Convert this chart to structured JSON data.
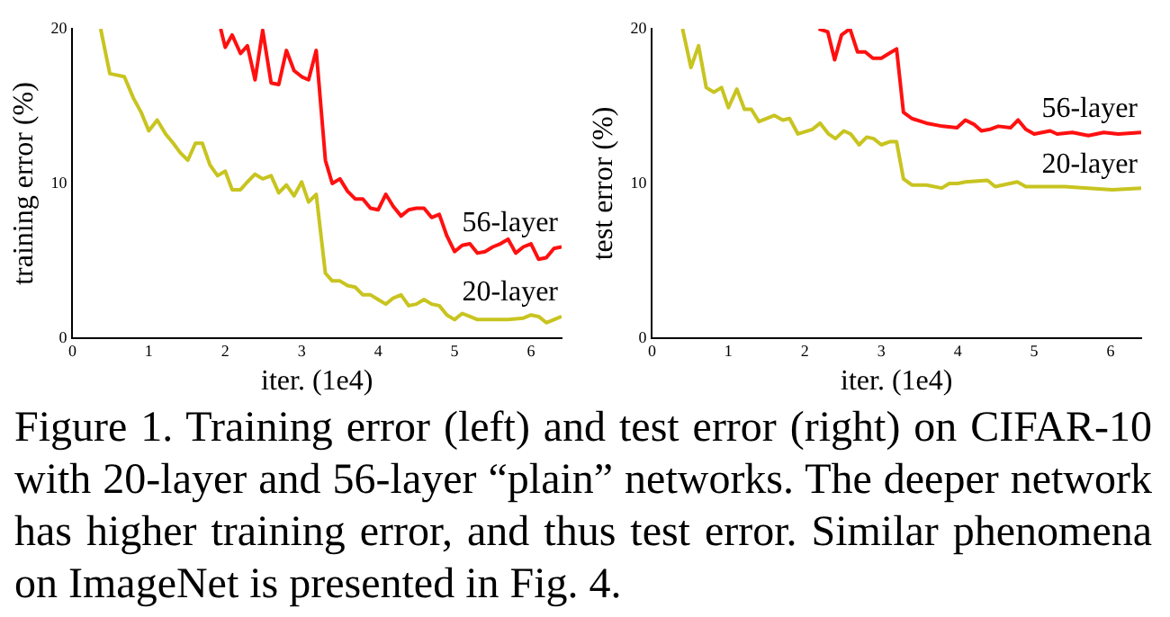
{
  "chart_data": [
    {
      "type": "line",
      "xlabel": "iter. (1e4)",
      "ylabel": "training error (%)",
      "xlim": [
        0,
        6.4
      ],
      "xticks": [
        0,
        1,
        2,
        3,
        4,
        5,
        6
      ],
      "ylim": [
        0,
        20
      ],
      "yticks": [
        0,
        10,
        20
      ],
      "grid": false,
      "legend": false,
      "marker": "none",
      "line_style": "solid",
      "annotations": [
        "Figure 1. Training error (left) and test error (right) on CIFAR-10 with 20-layer and 56-layer “plain” networks. The deeper network has higher training error, and thus test error. Similar phenomena on ImageNet is presented in Fig. 4."
      ],
      "series": [
        {
          "name": "56-layer",
          "color": "#ff1010",
          "x": [
            1.94,
            2.0,
            2.09,
            2.2,
            2.29,
            2.39,
            2.49,
            2.6,
            2.7,
            2.8,
            2.9,
            3.0,
            3.09,
            3.19,
            3.31,
            3.4,
            3.5,
            3.6,
            3.7,
            3.8,
            3.9,
            4.0,
            4.1,
            4.2,
            4.3,
            4.4,
            4.5,
            4.6,
            4.7,
            4.8,
            4.9,
            5.0,
            5.1,
            5.2,
            5.3,
            5.4,
            5.5,
            5.6,
            5.7,
            5.8,
            5.9,
            6.0,
            6.1,
            6.2,
            6.3,
            6.4
          ],
          "values": [
            20,
            18.8,
            19.6,
            18.4,
            18.9,
            16.7,
            19.9,
            16.5,
            16.4,
            18.6,
            17.3,
            16.9,
            16.7,
            18.6,
            11.5,
            10.0,
            10.3,
            9.5,
            9.0,
            9.0,
            8.4,
            8.3,
            9.3,
            8.5,
            7.9,
            8.3,
            8.4,
            8.4,
            7.8,
            8.0,
            6.6,
            5.6,
            6.0,
            6.1,
            5.5,
            5.6,
            5.9,
            6.1,
            6.4,
            5.5,
            5.9,
            6.1,
            5.1,
            5.2,
            5.8,
            5.9
          ]
        },
        {
          "name": "20-layer",
          "color": "#c8c420",
          "x": [
            0.37,
            0.49,
            0.68,
            0.8,
            0.9,
            1.0,
            1.11,
            1.22,
            1.32,
            1.41,
            1.51,
            1.61,
            1.7,
            1.8,
            1.9,
            2.0,
            2.09,
            2.2,
            2.29,
            2.39,
            2.49,
            2.6,
            2.7,
            2.8,
            2.9,
            3.0,
            3.09,
            3.19,
            3.31,
            3.4,
            3.5,
            3.6,
            3.7,
            3.8,
            3.9,
            4.0,
            4.1,
            4.2,
            4.3,
            4.4,
            4.5,
            4.6,
            4.7,
            4.8,
            4.9,
            5.0,
            5.1,
            5.2,
            5.3,
            5.5,
            5.7,
            5.9,
            6.0,
            6.1,
            6.2,
            6.3,
            6.4
          ],
          "values": [
            20,
            17.1,
            16.9,
            15.5,
            14.6,
            13.4,
            14.1,
            13.2,
            12.6,
            12.0,
            11.5,
            12.6,
            12.6,
            11.2,
            10.5,
            10.8,
            9.6,
            9.6,
            10.1,
            10.6,
            10.3,
            10.5,
            9.4,
            9.9,
            9.2,
            10.1,
            8.8,
            9.3,
            4.2,
            3.7,
            3.7,
            3.4,
            3.3,
            2.8,
            2.8,
            2.5,
            2.2,
            2.6,
            2.8,
            2.1,
            2.2,
            2.5,
            2.2,
            2.1,
            1.5,
            1.2,
            1.6,
            1.4,
            1.2,
            1.2,
            1.2,
            1.3,
            1.5,
            1.4,
            1.0,
            1.2,
            1.4
          ]
        }
      ]
    },
    {
      "type": "line",
      "xlabel": "iter. (1e4)",
      "ylabel": "test error (%)",
      "xlim": [
        0,
        6.4
      ],
      "xticks": [
        0,
        1,
        2,
        3,
        4,
        5,
        6
      ],
      "ylim": [
        0,
        20
      ],
      "yticks": [
        0,
        10,
        20
      ],
      "grid": false,
      "legend": false,
      "marker": "none",
      "line_style": "solid",
      "series": [
        {
          "name": "56-layer",
          "color": "#ff1010",
          "x": [
            2.18,
            2.3,
            2.39,
            2.48,
            2.59,
            2.69,
            2.79,
            2.89,
            3.0,
            3.1,
            3.2,
            3.29,
            3.4,
            3.59,
            3.8,
            3.99,
            4.1,
            4.22,
            4.31,
            4.42,
            4.53,
            4.69,
            4.79,
            4.89,
            5.0,
            5.21,
            5.3,
            5.5,
            5.71,
            5.91,
            6.1,
            6.4
          ],
          "values": [
            20,
            19.8,
            18.0,
            19.6,
            20,
            18.5,
            18.5,
            18.1,
            18.1,
            18.4,
            18.7,
            14.6,
            14.2,
            13.9,
            13.7,
            13.6,
            14.1,
            13.8,
            13.4,
            13.5,
            13.7,
            13.6,
            14.1,
            13.5,
            13.2,
            13.4,
            13.2,
            13.3,
            13.1,
            13.3,
            13.2,
            13.3
          ]
        },
        {
          "name": "20-layer",
          "color": "#c8c420",
          "x": [
            0.4,
            0.51,
            0.61,
            0.71,
            0.81,
            0.91,
            1.0,
            1.11,
            1.21,
            1.3,
            1.4,
            1.6,
            1.71,
            1.8,
            1.91,
            2.1,
            2.2,
            2.31,
            2.4,
            2.51,
            2.6,
            2.71,
            2.81,
            2.9,
            3.0,
            3.11,
            3.2,
            3.29,
            3.4,
            3.59,
            3.79,
            3.89,
            4.0,
            4.1,
            4.39,
            4.49,
            4.78,
            4.89,
            5.2,
            5.4,
            5.71,
            6.02,
            6.4
          ],
          "values": [
            20,
            17.5,
            18.9,
            16.2,
            15.9,
            16.2,
            14.9,
            16.1,
            14.8,
            14.8,
            14.0,
            14.4,
            14.1,
            14.2,
            13.2,
            13.5,
            13.9,
            13.2,
            12.9,
            13.4,
            13.2,
            12.5,
            13.0,
            12.9,
            12.5,
            12.7,
            12.7,
            10.3,
            9.9,
            9.9,
            9.7,
            10.0,
            10.0,
            10.1,
            10.2,
            9.8,
            10.1,
            9.8,
            9.8,
            9.8,
            9.7,
            9.6,
            9.7
          ]
        }
      ]
    }
  ]
}
